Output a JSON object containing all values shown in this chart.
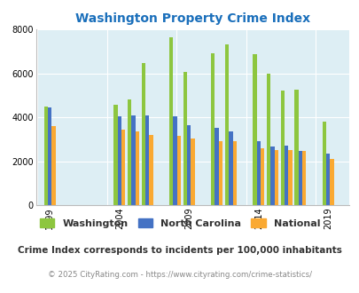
{
  "title": "Washington Property Crime Index",
  "title_color": "#1a6fbb",
  "plot_bg_color": "#ddeef4",
  "years": [
    1999,
    2004,
    2005,
    2006,
    2008,
    2009,
    2011,
    2012,
    2014,
    2015,
    2016,
    2017,
    2019
  ],
  "washington": [
    4500,
    4550,
    4800,
    6450,
    7650,
    6050,
    6900,
    7300,
    6850,
    6000,
    5200,
    5250,
    3800
  ],
  "north_carolina": [
    4450,
    4050,
    4100,
    4100,
    4050,
    3650,
    3500,
    3350,
    2900,
    2650,
    2700,
    2450,
    2350
  ],
  "national": [
    3600,
    3450,
    3350,
    3200,
    3150,
    3050,
    2900,
    2900,
    2600,
    2500,
    2500,
    2450,
    2100
  ],
  "washington_color": "#8dc63f",
  "nc_color": "#4472c4",
  "national_color": "#faa932",
  "ylim": [
    0,
    8000
  ],
  "yticks": [
    0,
    2000,
    4000,
    6000,
    8000
  ],
  "tick_years": [
    1999,
    2004,
    2009,
    2014,
    2019
  ],
  "legend_labels": [
    "Washington",
    "North Carolina",
    "National"
  ],
  "footnote1": "Crime Index corresponds to incidents per 100,000 inhabitants",
  "footnote2": "© 2025 CityRating.com - https://www.cityrating.com/crime-statistics/",
  "footnote1_color": "#333333",
  "footnote2_color": "#888888",
  "grid_color": "#ffffff"
}
